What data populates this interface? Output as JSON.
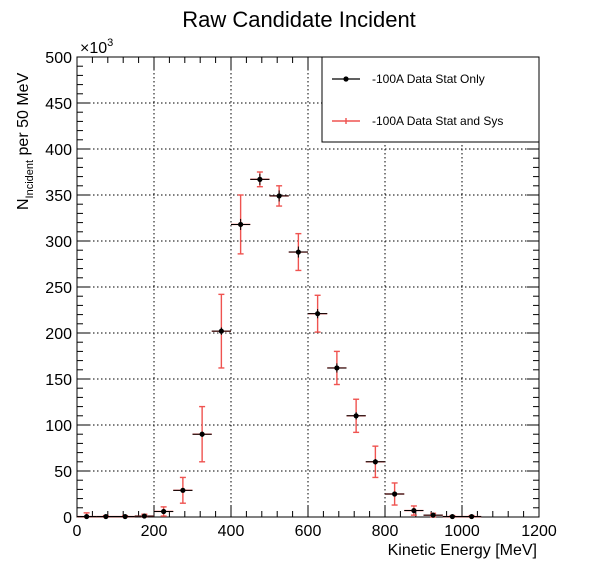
{
  "chart_data": {
    "type": "scatter",
    "title": "Raw Candidate Incident",
    "xlabel": "Kinetic Energy [MeV]",
    "ylabel": {
      "main": "N",
      "subscript": "Incident",
      "rest": " per 50 MeV"
    },
    "y_multiplier": {
      "base": "×10",
      "exponent": "3"
    },
    "xlim": [
      0,
      1200
    ],
    "ylim": [
      0,
      500
    ],
    "x_ticks": [
      0,
      200,
      400,
      600,
      800,
      1000,
      1200
    ],
    "y_ticks": [
      0,
      50,
      100,
      150,
      200,
      250,
      300,
      350,
      400,
      450,
      500
    ],
    "grid": true,
    "legend_position": "top-right",
    "x_bin_halfwidth": 25,
    "x": [
      25,
      75,
      125,
      175,
      225,
      275,
      325,
      375,
      425,
      475,
      525,
      575,
      625,
      675,
      725,
      775,
      825,
      875,
      925,
      975,
      1025
    ],
    "y": [
      0.5,
      0.5,
      0.5,
      1,
      6,
      29,
      90,
      202,
      318,
      367,
      349,
      288,
      221,
      162,
      110,
      60,
      25,
      7,
      2,
      0.5,
      0.5
    ],
    "series": [
      {
        "name": "-100A Data Stat Only",
        "color": "#000000",
        "yerr": [
          0.5,
          0.5,
          0.5,
          1,
          1,
          2,
          3,
          4,
          6,
          6,
          6,
          6,
          5,
          5,
          4,
          3,
          2,
          1,
          1,
          0.5,
          0.5
        ]
      },
      {
        "name": "-100A Data Stat and Sys",
        "color": "#ef5350",
        "yerr": [
          4,
          1,
          1,
          2,
          5,
          14,
          30,
          40,
          32,
          8,
          11,
          20,
          20,
          18,
          18,
          17,
          12,
          5,
          2,
          1,
          1
        ]
      }
    ]
  }
}
